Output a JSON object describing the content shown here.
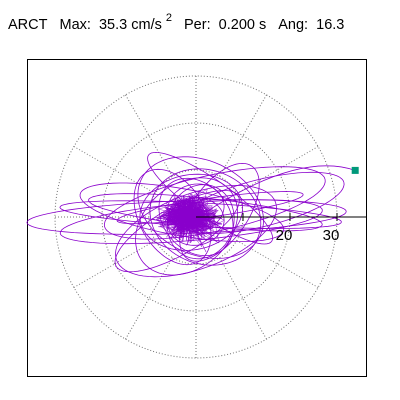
{
  "header": {
    "station": "ARCT",
    "max_label": "Max:",
    "max_value": "35.3",
    "max_unit": "cm/s",
    "max_unit_exp": "2",
    "per_label": "Per:",
    "per_value": "0.200 s",
    "ang_label": "Ang:",
    "ang_value": "16.3"
  },
  "chart_data": {
    "type": "line",
    "title": "",
    "description_of_axes": "polar",
    "radial_unit": "cm/s^2",
    "radial_ticks": [
      10,
      20,
      30
    ],
    "radial_tick_labels": [
      "20",
      "30"
    ],
    "radial_max": 35.3,
    "angle_spokes_deg": [
      0,
      30,
      60,
      90,
      120,
      150,
      180,
      210,
      240,
      270,
      300,
      330
    ],
    "grid": true,
    "max_point": {
      "angle_deg": 16.3,
      "radius": 35.3
    },
    "colors": {
      "trace": "#8a00cc",
      "marker": "#00997a",
      "grid": "#707070"
    },
    "series": [
      {
        "xy_loops": [
          {
            "cx": -2,
            "cy": 0,
            "ax": 34,
            "ay": 3.5,
            "rot": 2
          },
          {
            "cx": 1,
            "cy": 0.5,
            "ax": 30,
            "ay": 2.5,
            "rot": -3
          },
          {
            "cx": -1,
            "cy": -1,
            "ax": 28,
            "ay": 4,
            "rot": 5
          },
          {
            "cx": 2,
            "cy": 1,
            "ax": 25,
            "ay": 3,
            "rot": -6
          },
          {
            "cx": 3,
            "cy": 2,
            "ax": 20,
            "ay": 2,
            "rot": 8
          },
          {
            "cx": -3,
            "cy": 1,
            "ax": 22,
            "ay": 5,
            "rot": -10
          },
          {
            "cx": 4,
            "cy": 3,
            "ax": 24,
            "ay": 6,
            "rot": 12
          },
          {
            "cx": 0,
            "cy": -3,
            "ax": 18,
            "ay": 8,
            "rot": 20
          },
          {
            "cx": 1,
            "cy": 2,
            "ax": 14,
            "ay": 10,
            "rot": -25
          },
          {
            "cx": -2,
            "cy": -2,
            "ax": 12,
            "ay": 9,
            "rot": 40
          },
          {
            "cx": 2,
            "cy": 0,
            "ax": 10,
            "ay": 12,
            "rot": 70
          },
          {
            "cx": -1,
            "cy": 1,
            "ax": 8,
            "ay": 11,
            "rot": 100
          },
          {
            "cx": 0,
            "cy": 0,
            "ax": 9,
            "ay": 7,
            "rot": 130
          },
          {
            "cx": 1,
            "cy": -1,
            "ax": 7,
            "ay": 8,
            "rot": 160
          },
          {
            "cx": 3,
            "cy": 4,
            "ax": 16,
            "ay": 4,
            "rot": -35
          },
          {
            "cx": -4,
            "cy": -3,
            "ax": 15,
            "ay": 5,
            "rot": 30
          },
          {
            "cx": 5,
            "cy": 1,
            "ax": 12,
            "ay": 6,
            "rot": 55
          },
          {
            "cx": -5,
            "cy": 0,
            "ax": 11,
            "ay": 7,
            "rot": -60
          },
          {
            "cx": 0,
            "cy": 2,
            "ax": 6,
            "ay": 5,
            "rot": 10
          },
          {
            "cx": 0,
            "cy": -1,
            "ax": 5,
            "ay": 6,
            "rot": -80
          },
          {
            "cx": 14,
            "cy": 3,
            "ax": 18,
            "ay": 5,
            "rot": 14
          }
        ],
        "scatter_cluster": {
          "cx": -1.5,
          "cy": 0,
          "sx": 4.5,
          "sy": 3.5,
          "count": 900
        }
      }
    ]
  }
}
